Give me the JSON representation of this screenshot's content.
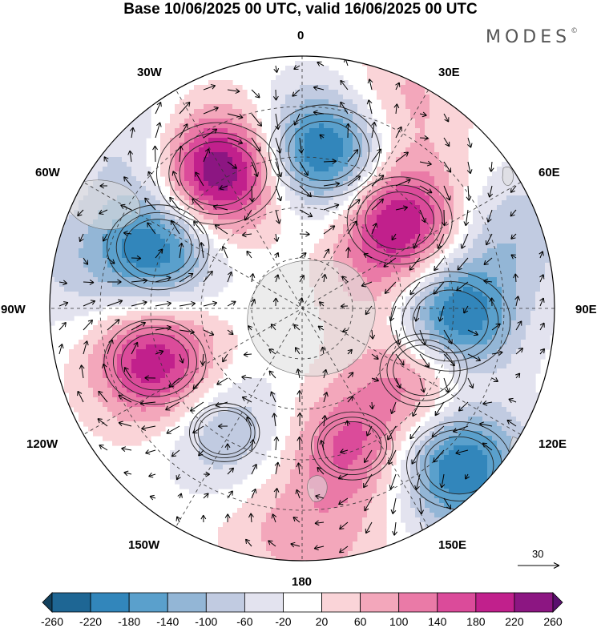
{
  "title": "Base 10/06/2025 00 UTC, valid 16/06/2025 00 UTC",
  "brand": "MODES",
  "brand_mark": "©",
  "longitude_labels": {
    "lon_0": "0",
    "lon_30e": "30E",
    "lon_60e": "60E",
    "lon_90e": "90E",
    "lon_120e": "120E",
    "lon_150e": "150E",
    "lon_180": "180",
    "lon_150w": "150W",
    "lon_120w": "120W",
    "lon_90w": "90W",
    "lon_60w": "60W",
    "lon_30w": "30W"
  },
  "reference_vector": {
    "label": "30"
  },
  "colorbar": {
    "ticks": [
      "-260",
      "-220",
      "-180",
      "-140",
      "-100",
      "-60",
      "-20",
      "20",
      "60",
      "100",
      "140",
      "180",
      "220",
      "260"
    ],
    "colors": [
      "#12405c",
      "#1e6694",
      "#3286bb",
      "#5aa0cc",
      "#93b6d6",
      "#c1cbe1",
      "#e3e3ef",
      "#ffffff",
      "#fad4d8",
      "#f3a7bb",
      "#ea7aa7",
      "#db4b9a",
      "#c1208c",
      "#8c1682",
      "#5a0f6e"
    ]
  },
  "anomalies": [
    {
      "lon": -32,
      "colat": 0.63,
      "value": 290
    },
    {
      "lon": 8,
      "colat": 0.63,
      "value": -250
    },
    {
      "lon": 48,
      "colat": 0.52,
      "value": 230
    },
    {
      "lon": 95,
      "colat": 0.59,
      "value": -280
    },
    {
      "lon": 117,
      "colat": 0.54,
      "value": 170
    },
    {
      "lon": 135,
      "colat": 0.88,
      "value": -230
    },
    {
      "lon": 160,
      "colat": 0.58,
      "value": 150
    },
    {
      "lon": -110,
      "colat": 0.62,
      "value": 220
    },
    {
      "lon": -67,
      "colat": 0.62,
      "value": -220
    },
    {
      "lon": -148,
      "colat": 0.58,
      "value": -110
    },
    {
      "lon": 70,
      "colat": 0.88,
      "value": -90
    },
    {
      "lon": 25,
      "colat": 0.9,
      "value": 80
    },
    {
      "lon": -45,
      "colat": 0.92,
      "value": -70
    },
    {
      "lon": 175,
      "colat": 0.93,
      "value": 60
    },
    {
      "lon": -170,
      "colat": 0.85,
      "value": 40
    },
    {
      "lon": 75,
      "colat": 0.33,
      "value": 60
    },
    {
      "lon": -80,
      "colat": 0.92,
      "value": -60
    }
  ]
}
